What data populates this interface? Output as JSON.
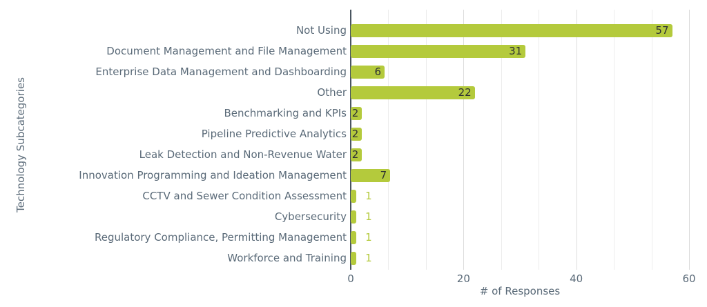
{
  "chart_data": {
    "type": "bar",
    "orientation": "horizontal",
    "title": "",
    "xlabel": "# of Responses",
    "ylabel": "Technology Subcategories",
    "xlim": [
      0,
      60
    ],
    "xticks": [
      0,
      20,
      40,
      60
    ],
    "grid": "vertical minor gridlines every 6.67 units, major at 20/40/60, legend none",
    "categories": [
      "Not Using",
      "Document Management and File Management",
      "Enterprise Data Management and Dashboarding",
      "Other",
      "Benchmarking and KPIs",
      "Pipeline Predictive Analytics",
      "Leak Detection and Non-Revenue Water",
      "Innovation Programming and Ideation Management",
      "CCTV and Sewer Condition Assessment",
      "Cybersecurity",
      "Regulatory Compliance, Permitting Management",
      "Workforce and Training"
    ],
    "values": [
      57,
      31,
      6,
      22,
      2,
      2,
      2,
      7,
      1,
      1,
      1,
      1
    ],
    "colors": {
      "bar": "#b4ca3c",
      "value_inside": "#2d3033",
      "axis_text": "#5a6a78",
      "axis_line": "#4a5560",
      "grid_minor": "#ececec",
      "grid_major": "#dcdcdc",
      "background": "#ffffff"
    }
  }
}
